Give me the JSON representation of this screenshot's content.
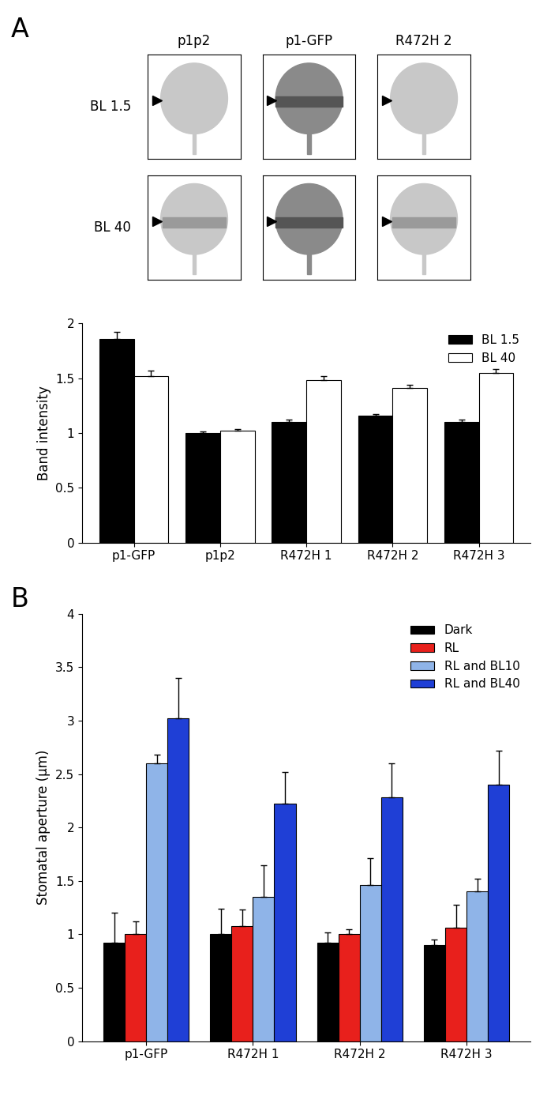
{
  "panel_labels": [
    "A",
    "B"
  ],
  "leaf_images": {
    "columns": [
      "p1p2",
      "p1-GFP",
      "R472H 2"
    ],
    "rows": [
      "BL 1.5",
      "BL 40"
    ]
  },
  "chart_data": [
    {
      "type": "bar",
      "y_label": "Band intensity",
      "categories": [
        "p1-GFP",
        "p1p2",
        "R472H 1",
        "R472H 2",
        "R472H 3"
      ],
      "series": [
        {
          "name": "BL 1.5",
          "color": "#000000",
          "values": [
            1.86,
            1.0,
            1.1,
            1.16,
            1.1
          ],
          "errors": [
            0.06,
            0.015,
            0.02,
            0.01,
            0.02
          ]
        },
        {
          "name": "BL 40",
          "color": "#ffffff",
          "values": [
            1.52,
            1.02,
            1.48,
            1.41,
            1.55
          ],
          "errors": [
            0.05,
            0.015,
            0.04,
            0.03,
            0.03
          ]
        }
      ],
      "ylim": [
        0,
        2
      ],
      "yticks": [
        0,
        0.5,
        1,
        1.5,
        2
      ],
      "legend": "upper right"
    },
    {
      "type": "bar",
      "y_label": "Stomatal aperture (μm)",
      "categories": [
        "p1-GFP",
        "R472H 1",
        "R472H 2",
        "R472H 3"
      ],
      "series": [
        {
          "name": "Dark",
          "color": "#000000",
          "values": [
            0.92,
            1.0,
            0.92,
            0.9
          ],
          "errors": [
            0.28,
            0.24,
            0.1,
            0.05
          ]
        },
        {
          "name": "RL",
          "color": "#e8201c",
          "values": [
            1.0,
            1.08,
            1.0,
            1.06
          ],
          "errors": [
            0.12,
            0.15,
            0.05,
            0.22
          ]
        },
        {
          "name": "RL and BL10",
          "color": "#8fb4e8",
          "values": [
            2.6,
            1.35,
            1.46,
            1.4
          ],
          "errors": [
            0.08,
            0.3,
            0.25,
            0.12
          ]
        },
        {
          "name": "RL and BL40",
          "color": "#1f3fd6",
          "values": [
            3.02,
            2.22,
            2.28,
            2.4
          ],
          "errors": [
            0.38,
            0.3,
            0.32,
            0.32
          ]
        }
      ],
      "ylim": [
        0,
        4
      ],
      "yticks": [
        0,
        0.5,
        1,
        1.5,
        2,
        2.5,
        3,
        3.5,
        4
      ],
      "legend": "upper right"
    }
  ]
}
